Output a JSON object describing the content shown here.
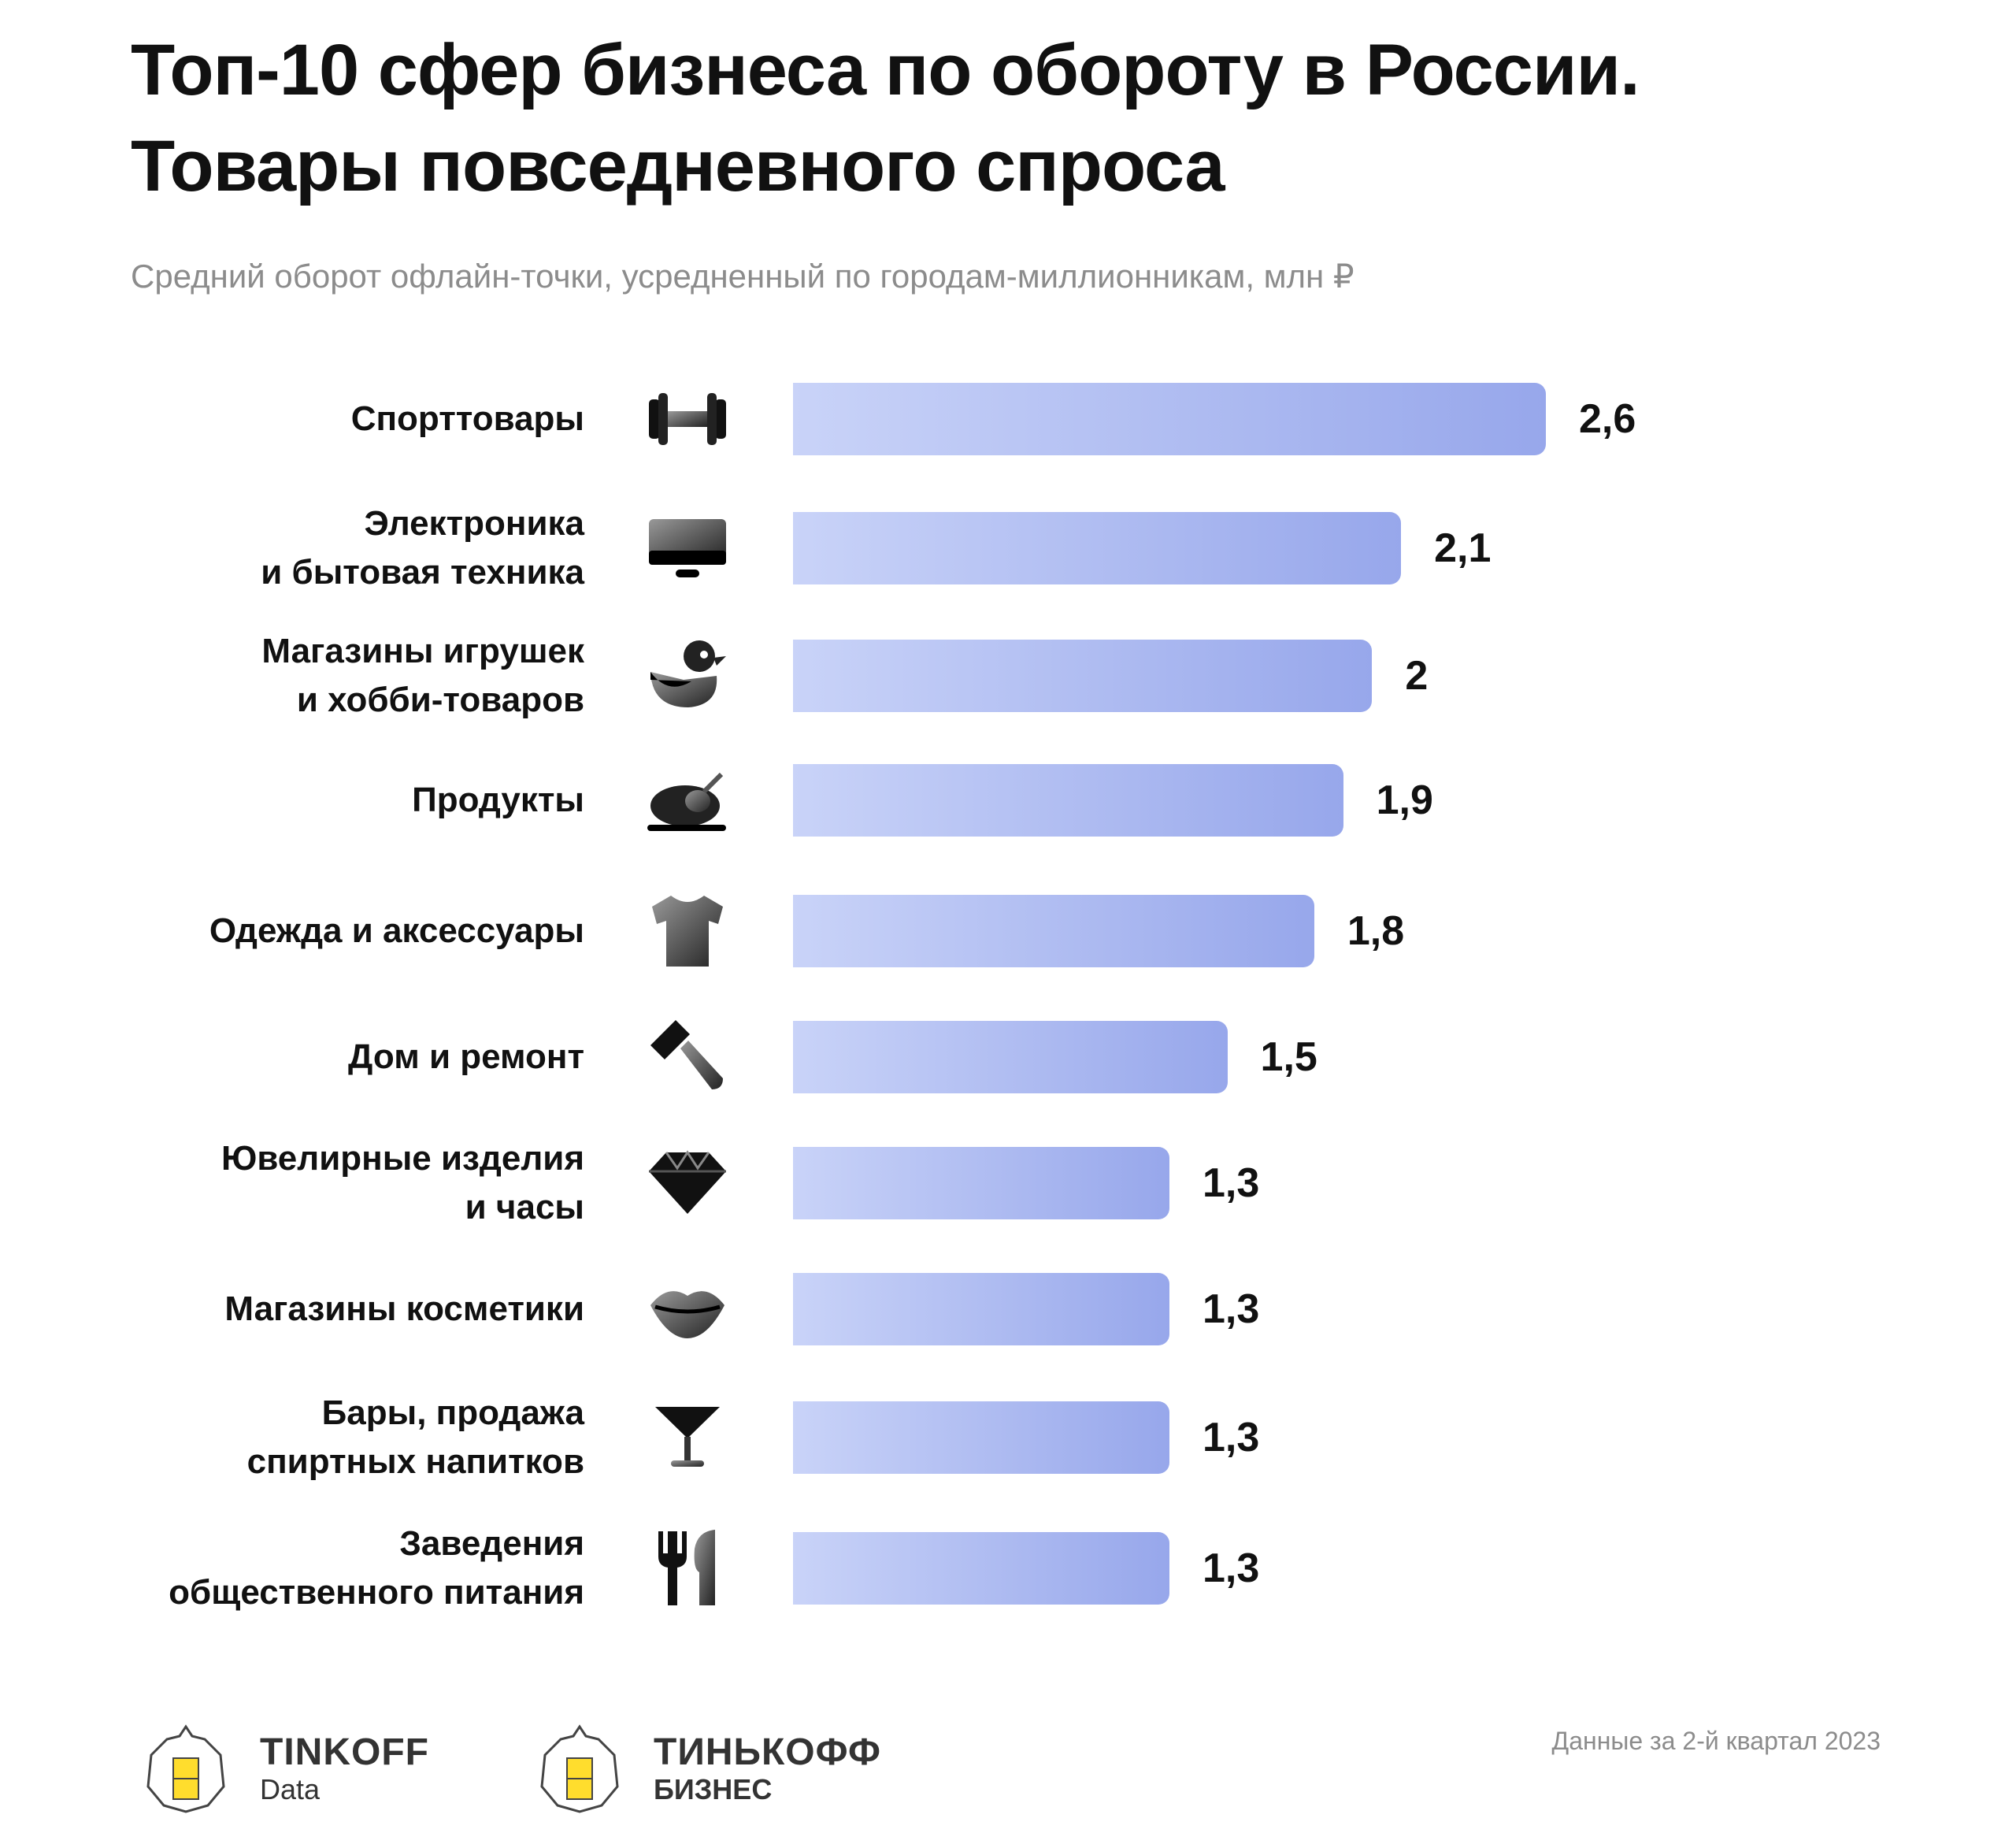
{
  "title_line1": "Топ-10 сфер бизнеса по обороту в России.",
  "title_line2": "Товары повседневного спроса",
  "subtitle": "Средний оборот офлайн-точки, усредненный по городам-миллионникам, млн ₽",
  "chart_data": {
    "type": "bar",
    "orientation": "horizontal",
    "title": "Топ-10 сфер бизнеса по обороту в России. Товары повседневного спроса",
    "ylabel": "Средний оборот офлайн-точки, усредненный по городам-миллионникам, млн ₽",
    "categories": [
      "Спорттовары",
      "Электроника\nи бытовая техника",
      "Магазины игрушек\nи хобби-товаров",
      "Продукты",
      "Одежда и аксессуары",
      "Дом и ремонт",
      "Ювелирные изделия\nи часы",
      "Магазины косметики",
      "Бары, продажа\nспиртных напитков",
      "Заведения\nобщественного питания"
    ],
    "values": [
      2.6,
      2.1,
      2.0,
      1.9,
      1.8,
      1.5,
      1.3,
      1.3,
      1.3,
      1.3
    ],
    "value_labels": [
      "2,6",
      "2,1",
      "2",
      "1,9",
      "1,8",
      "1,5",
      "1,3",
      "1,3",
      "1,3",
      "1,3"
    ],
    "icons": [
      "dumbbell-icon",
      "monitor-icon",
      "rubber-duck-icon",
      "roast-chicken-icon",
      "t-shirt-icon",
      "hammer-icon",
      "diamond-icon",
      "lips-icon",
      "cocktail-glass-icon",
      "fork-knife-icon"
    ],
    "xlim": [
      0,
      2.6
    ],
    "grid": false,
    "colors": {
      "bar_start": "#c9d3f8",
      "bar_end": "#97a7eb"
    }
  },
  "footer": {
    "logo1_word": "TINKOFF",
    "logo1_sub": "Data",
    "logo2_word": "ТИНЬКОФФ",
    "logo2_sub": "БИЗНЕС",
    "note": "Данные за 2-й квартал 2023"
  }
}
